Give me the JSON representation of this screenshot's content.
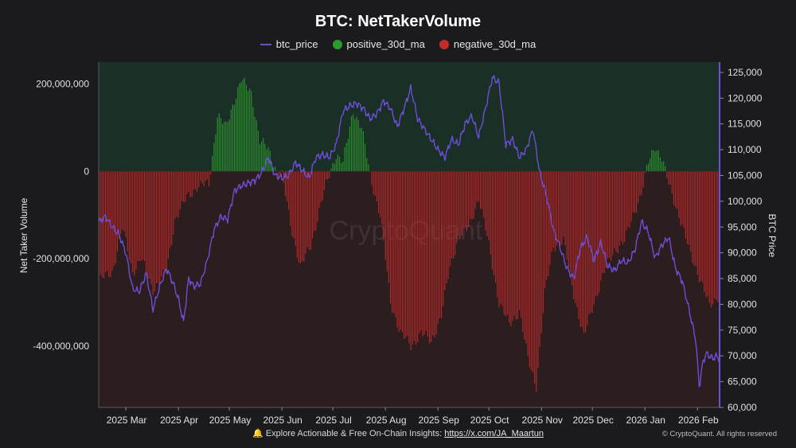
{
  "chart_data": {
    "type": "bar",
    "title": "BTC: NetTakerVolume",
    "legend": [
      {
        "name": "btc_price",
        "color": "#6b4fd6",
        "kind": "line"
      },
      {
        "name": "positive_30d_ma",
        "color": "#2e9b2e",
        "kind": "dot"
      },
      {
        "name": "negative_30d_ma",
        "color": "#c42b2b",
        "kind": "dot"
      }
    ],
    "ylabel": "Net Taker Volume",
    "y2label": "BTC Price",
    "ylim": [
      -540000000,
      250000000
    ],
    "y2lim": [
      60000,
      127000
    ],
    "y_ticks": [
      {
        "value": 200000000,
        "label": "200,000,000"
      },
      {
        "value": 0,
        "label": "0"
      },
      {
        "value": -200000000,
        "label": "-200,000,000"
      },
      {
        "value": -400000000,
        "label": "-400,000,000"
      }
    ],
    "y2_ticks": [
      {
        "value": 125000,
        "label": "125,000"
      },
      {
        "value": 120000,
        "label": "120,000"
      },
      {
        "value": 115000,
        "label": "115,000"
      },
      {
        "value": 110000,
        "label": "110,000"
      },
      {
        "value": 105000,
        "label": "105,000"
      },
      {
        "value": 100000,
        "label": "100,000"
      },
      {
        "value": 95000,
        "label": "95,000"
      },
      {
        "value": 90000,
        "label": "90,000"
      },
      {
        "value": 85000,
        "label": "85,000"
      },
      {
        "value": 80000,
        "label": "80,000"
      },
      {
        "value": 75000,
        "label": "75,000"
      },
      {
        "value": 70000,
        "label": "70,000"
      },
      {
        "value": 65000,
        "label": "65,000"
      },
      {
        "value": 60000,
        "label": "60,000"
      }
    ],
    "x_start_day": 0,
    "x_end_day": 366,
    "x_ticks": [
      {
        "day": 16,
        "label": "2025 Mar"
      },
      {
        "day": 47,
        "label": "2025 Apr"
      },
      {
        "day": 77,
        "label": "2025 May"
      },
      {
        "day": 108,
        "label": "2025 Jun"
      },
      {
        "day": 138,
        "label": "2025 Jul"
      },
      {
        "day": 169,
        "label": "2025 Aug"
      },
      {
        "day": 200,
        "label": "2025 Sep"
      },
      {
        "day": 230,
        "label": "2025 Oct"
      },
      {
        "day": 261,
        "label": "2025 Nov"
      },
      {
        "day": 291,
        "label": "2025 Dec"
      },
      {
        "day": 322,
        "label": "2026 Jan"
      },
      {
        "day": 353,
        "label": "2026 Feb"
      }
    ],
    "net_taker_volume_30d_ma_keypoints": [
      [
        0,
        -250000000
      ],
      [
        8,
        -230000000
      ],
      [
        14,
        -130000000
      ],
      [
        20,
        -230000000
      ],
      [
        25,
        -200000000
      ],
      [
        32,
        -270000000
      ],
      [
        40,
        -230000000
      ],
      [
        45,
        -110000000
      ],
      [
        52,
        -60000000
      ],
      [
        58,
        -35000000
      ],
      [
        63,
        -30000000
      ],
      [
        65,
        -30000000
      ],
      [
        70,
        130000000
      ],
      [
        75,
        100000000
      ],
      [
        80,
        165000000
      ],
      [
        84,
        210000000
      ],
      [
        90,
        180000000
      ],
      [
        95,
        70000000
      ],
      [
        100,
        50000000
      ],
      [
        105,
        0
      ],
      [
        108,
        -10000000
      ],
      [
        113,
        -120000000
      ],
      [
        119,
        -220000000
      ],
      [
        125,
        -170000000
      ],
      [
        130,
        -90000000
      ],
      [
        135,
        -20000000
      ],
      [
        140,
        40000000
      ],
      [
        144,
        20000000
      ],
      [
        150,
        140000000
      ],
      [
        155,
        100000000
      ],
      [
        160,
        -10000000
      ],
      [
        166,
        -100000000
      ],
      [
        172,
        -300000000
      ],
      [
        178,
        -370000000
      ],
      [
        184,
        -400000000
      ],
      [
        190,
        -370000000
      ],
      [
        196,
        -390000000
      ],
      [
        202,
        -330000000
      ],
      [
        207,
        -220000000
      ],
      [
        212,
        -150000000
      ],
      [
        218,
        -130000000
      ],
      [
        224,
        -60000000
      ],
      [
        230,
        -170000000
      ],
      [
        236,
        -300000000
      ],
      [
        242,
        -350000000
      ],
      [
        248,
        -320000000
      ],
      [
        253,
        -430000000
      ],
      [
        258,
        -490000000
      ],
      [
        263,
        -280000000
      ],
      [
        268,
        -170000000
      ],
      [
        274,
        -160000000
      ],
      [
        280,
        -280000000
      ],
      [
        286,
        -380000000
      ],
      [
        292,
        -300000000
      ],
      [
        298,
        -230000000
      ],
      [
        304,
        -180000000
      ],
      [
        310,
        -160000000
      ],
      [
        315,
        -100000000
      ],
      [
        320,
        -50000000
      ],
      [
        324,
        20000000
      ],
      [
        328,
        60000000
      ],
      [
        332,
        30000000
      ],
      [
        336,
        -30000000
      ],
      [
        342,
        -100000000
      ],
      [
        348,
        -180000000
      ],
      [
        354,
        -240000000
      ],
      [
        360,
        -310000000
      ],
      [
        366,
        -280000000
      ]
    ],
    "btc_price_keypoints": [
      [
        0,
        96000
      ],
      [
        4,
        97000
      ],
      [
        8,
        95000
      ],
      [
        12,
        93500
      ],
      [
        16,
        90000
      ],
      [
        20,
        83000
      ],
      [
        24,
        82500
      ],
      [
        28,
        86000
      ],
      [
        32,
        79000
      ],
      [
        36,
        83500
      ],
      [
        40,
        87000
      ],
      [
        44,
        84000
      ],
      [
        47,
        81000
      ],
      [
        50,
        76500
      ],
      [
        53,
        85000
      ],
      [
        56,
        83500
      ],
      [
        60,
        84000
      ],
      [
        64,
        88500
      ],
      [
        68,
        94500
      ],
      [
        72,
        97000
      ],
      [
        76,
        96500
      ],
      [
        80,
        102000
      ],
      [
        84,
        103000
      ],
      [
        88,
        103500
      ],
      [
        92,
        104000
      ],
      [
        96,
        105500
      ],
      [
        100,
        108500
      ],
      [
        104,
        105000
      ],
      [
        108,
        104500
      ],
      [
        112,
        105000
      ],
      [
        116,
        107500
      ],
      [
        120,
        106000
      ],
      [
        124,
        104500
      ],
      [
        128,
        108500
      ],
      [
        132,
        109000
      ],
      [
        136,
        108500
      ],
      [
        140,
        111000
      ],
      [
        144,
        117500
      ],
      [
        148,
        118500
      ],
      [
        152,
        119000
      ],
      [
        156,
        118000
      ],
      [
        160,
        116000
      ],
      [
        164,
        117000
      ],
      [
        168,
        119500
      ],
      [
        172,
        118000
      ],
      [
        176,
        114500
      ],
      [
        180,
        118000
      ],
      [
        184,
        122000
      ],
      [
        188,
        116000
      ],
      [
        192,
        114000
      ],
      [
        196,
        112000
      ],
      [
        200,
        110000
      ],
      [
        204,
        108500
      ],
      [
        208,
        112000
      ],
      [
        212,
        111000
      ],
      [
        216,
        115000
      ],
      [
        220,
        116500
      ],
      [
        224,
        112500
      ],
      [
        228,
        118000
      ],
      [
        232,
        124000
      ],
      [
        236,
        123000
      ],
      [
        240,
        111000
      ],
      [
        244,
        112000
      ],
      [
        248,
        108500
      ],
      [
        252,
        110000
      ],
      [
        256,
        114000
      ],
      [
        260,
        105500
      ],
      [
        264,
        101000
      ],
      [
        268,
        94500
      ],
      [
        272,
        91000
      ],
      [
        276,
        87000
      ],
      [
        280,
        85000
      ],
      [
        284,
        91000
      ],
      [
        288,
        93000
      ],
      [
        292,
        88500
      ],
      [
        296,
        92000
      ],
      [
        300,
        87500
      ],
      [
        304,
        86500
      ],
      [
        308,
        88500
      ],
      [
        312,
        88000
      ],
      [
        316,
        90500
      ],
      [
        320,
        96000
      ],
      [
        324,
        94000
      ],
      [
        328,
        89000
      ],
      [
        332,
        91500
      ],
      [
        336,
        93000
      ],
      [
        340,
        87000
      ],
      [
        344,
        84500
      ],
      [
        348,
        79000
      ],
      [
        352,
        73000
      ],
      [
        354,
        64000
      ],
      [
        356,
        68500
      ],
      [
        358,
        70500
      ],
      [
        360,
        70000
      ],
      [
        362,
        69500
      ],
      [
        364,
        70000
      ],
      [
        366,
        69500
      ]
    ]
  },
  "watermark": "CryptoQuant",
  "footer": {
    "icon": "bell-icon",
    "text": "Explore Actionable & Free On-Chain Insights:",
    "link": "https://x.com/JA_Maartun"
  },
  "copyright": "© CryptoQuant. All rights reserved",
  "colors": {
    "positive": "#2e9b2e",
    "negative": "#c42b2b",
    "price": "#6b4fd6",
    "pos_bg": "#1a3026",
    "neg_bg": "#2c1d1f"
  }
}
